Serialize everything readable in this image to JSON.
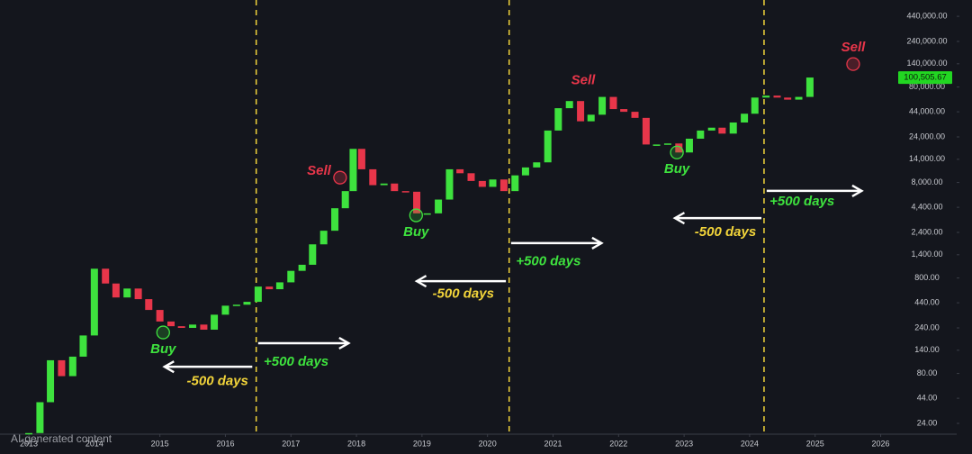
{
  "chart_data": {
    "type": "candlestick",
    "log_y": true,
    "x": [
      2013.0,
      2013.17,
      2013.33,
      2013.5,
      2013.67,
      2013.83,
      2014.0,
      2014.17,
      2014.33,
      2014.5,
      2014.67,
      2014.83,
      2015.0,
      2015.17,
      2015.33,
      2015.5,
      2015.67,
      2015.83,
      2016.0,
      2016.17,
      2016.33,
      2016.5,
      2016.67,
      2016.83,
      2017.0,
      2017.17,
      2017.33,
      2017.5,
      2017.67,
      2017.83,
      2017.95,
      2018.08,
      2018.25,
      2018.42,
      2018.58,
      2018.75,
      2018.92,
      2019.08,
      2019.25,
      2019.42,
      2019.58,
      2019.75,
      2019.92,
      2020.08,
      2020.25,
      2020.42,
      2020.58,
      2020.75,
      2020.92,
      2021.08,
      2021.25,
      2021.42,
      2021.58,
      2021.75,
      2021.92,
      2022.08,
      2022.25,
      2022.42,
      2022.58,
      2022.75,
      2022.92,
      2023.08,
      2023.25,
      2023.42,
      2023.58,
      2023.75,
      2023.92,
      2024.08,
      2024.25,
      2024.42,
      2024.58,
      2024.75,
      2024.92
    ],
    "series": [
      {
        "up_color": "#3ee23e",
        "down_color": "#e8364a",
        "values": [
          19,
          40,
          110,
          75,
          120,
          200,
          1000,
          700,
          500,
          620,
          480,
          370,
          280,
          250,
          240,
          260,
          230,
          330,
          410,
          420,
          450,
          650,
          610,
          720,
          950,
          1100,
          1800,
          2500,
          4300,
          6500,
          18000,
          11000,
          7500,
          7800,
          6500,
          6400,
          3800,
          3800,
          5300,
          11000,
          10000,
          8300,
          7200,
          8600,
          6500,
          9500,
          11500,
          13000,
          28000,
          48000,
          57000,
          35000,
          41000,
          63000,
          47000,
          44000,
          38000,
          20000,
          20000,
          20500,
          16500,
          23000,
          28000,
          30000,
          26000,
          34000,
          42000,
          62000,
          65000,
          62000,
          59000,
          63000,
          100505.67
        ]
      }
    ],
    "xlim": [
      2012.56,
      2027.16
    ],
    "ylim": [
      18.5,
      652000
    ],
    "xticks": [
      2013,
      2014,
      2015,
      2016,
      2017,
      2018,
      2019,
      2020,
      2021,
      2022,
      2023,
      2024,
      2025,
      2026
    ],
    "yticks": [
      {
        "value": 24,
        "label": "24.00"
      },
      {
        "value": 44,
        "label": "44.00"
      },
      {
        "value": 80,
        "label": "80.00"
      },
      {
        "value": 140,
        "label": "140.00"
      },
      {
        "value": 240,
        "label": "240.00"
      },
      {
        "value": 440,
        "label": "440.00"
      },
      {
        "value": 800,
        "label": "800.00"
      },
      {
        "value": 1400,
        "label": "1,400.00"
      },
      {
        "value": 2400,
        "label": "2,400.00"
      },
      {
        "value": 4400,
        "label": "4,400.00"
      },
      {
        "value": 8000,
        "label": "8,000.00"
      },
      {
        "value": 14000,
        "label": "14,000.00"
      },
      {
        "value": 24000,
        "label": "24,000.00"
      },
      {
        "value": 44000,
        "label": "44,000.00"
      },
      {
        "value": 80000,
        "label": "80,000.00"
      },
      {
        "value": 140000,
        "label": "140,000.00"
      },
      {
        "value": 240000,
        "label": "240,000.00"
      },
      {
        "value": 440000,
        "label": "440,000.00"
      }
    ],
    "last_price": {
      "value": 100505.67,
      "label": "100,505.67",
      "color": "#22d622"
    },
    "vlines": {
      "x": [
        2016.47,
        2020.33,
        2024.22
      ],
      "color": "#f2d43a"
    },
    "arrows": [
      {
        "x": [
          2016.41,
          2015.07
        ],
        "y": 94
      },
      {
        "x": [
          2016.5,
          2017.88
        ],
        "y": 166
      },
      {
        "x": [
          2020.28,
          2018.92
        ],
        "y": 741
      },
      {
        "x": [
          2020.36,
          2021.74
        ],
        "y": 1853
      },
      {
        "x": [
          2024.18,
          2022.86
        ],
        "y": 3390
      },
      {
        "x": [
          2024.26,
          2025.71
        ],
        "y": 6530
      }
    ],
    "annotations": [
      {
        "text": "-500 days",
        "x": 2015.88,
        "y": 66,
        "color": "#f2d43a"
      },
      {
        "text": "+500 days",
        "x": 2017.08,
        "y": 105,
        "color": "#3ee23e"
      },
      {
        "text": "-500 days",
        "x": 2019.63,
        "y": 540,
        "color": "#f2d43a"
      },
      {
        "text": "+500 days",
        "x": 2020.93,
        "y": 1180,
        "color": "#3ee23e"
      },
      {
        "text": "-500 days",
        "x": 2023.63,
        "y": 2390,
        "color": "#f2d43a"
      },
      {
        "text": "+500 days",
        "x": 2024.8,
        "y": 5000,
        "color": "#3ee23e"
      }
    ],
    "signals": [
      {
        "text": "Buy",
        "x": 2015.05,
        "y": 215,
        "color": "#3ee23e",
        "label_pos": "below",
        "marker": true
      },
      {
        "text": "Sell",
        "x": 2017.75,
        "y": 9000,
        "color": "#e8364a",
        "label_pos": "left",
        "marker": true
      },
      {
        "text": "Buy",
        "x": 2018.91,
        "y": 3624,
        "color": "#3ee23e",
        "label_pos": "below",
        "marker": true
      },
      {
        "text": "Sell",
        "x": 2021.46,
        "y": 63000,
        "color": "#e8364a",
        "label_pos": "above",
        "marker": false
      },
      {
        "text": "Buy",
        "x": 2022.89,
        "y": 16500,
        "color": "#3ee23e",
        "label_pos": "below",
        "marker": true
      },
      {
        "text": "Sell",
        "x": 2025.58,
        "y": 139000,
        "color": "#e8364a",
        "label_pos": "above",
        "marker": true
      }
    ],
    "watermark": "AI-generated content"
  }
}
